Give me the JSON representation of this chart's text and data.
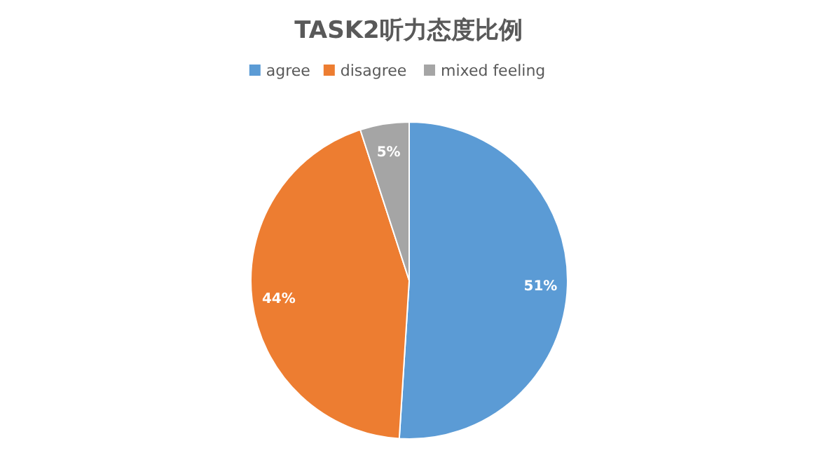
{
  "chart_data": {
    "type": "pie",
    "title": "TASK2听力态度比例",
    "categories": [
      "agree",
      "disagree",
      "mixed feeling"
    ],
    "values": [
      51,
      44,
      5
    ],
    "colors": [
      "#5b9bd5",
      "#ed7d31",
      "#a5a5a5"
    ],
    "value_labels": [
      "51%",
      "44%",
      "5%"
    ],
    "legend": "top"
  }
}
